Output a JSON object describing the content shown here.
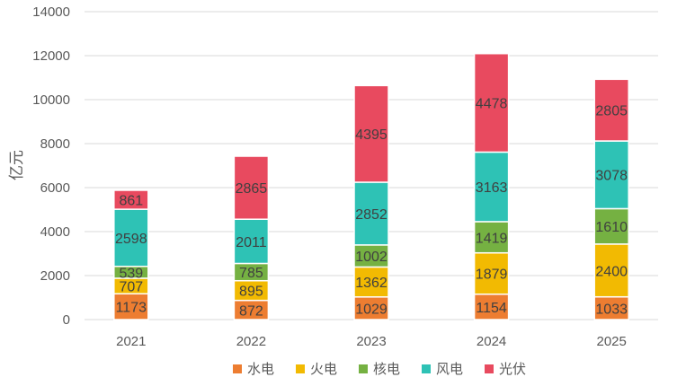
{
  "chart_data": {
    "type": "bar",
    "stacked": true,
    "title": "",
    "xlabel": "",
    "ylabel": "亿元",
    "ylim": [
      0,
      14000
    ],
    "yticks": [
      0,
      2000,
      4000,
      6000,
      8000,
      10000,
      12000,
      14000
    ],
    "grid": true,
    "legend_position": "bottom",
    "categories": [
      "2021",
      "2022",
      "2023",
      "2024",
      "2025"
    ],
    "series": [
      {
        "name": "水电",
        "color": "#ED7D31",
        "values": [
          1173,
          872,
          1029,
          1154,
          1033
        ]
      },
      {
        "name": "火电",
        "color": "#F2BA02",
        "values": [
          707,
          895,
          1362,
          1879,
          2400
        ]
      },
      {
        "name": "核电",
        "color": "#75B142",
        "values": [
          539,
          785,
          1002,
          1419,
          1610
        ]
      },
      {
        "name": "风电",
        "color": "#2EC2B5",
        "values": [
          2598,
          2011,
          2852,
          3163,
          3078
        ]
      },
      {
        "name": "光伏",
        "color": "#E84A5F",
        "values": [
          861,
          2865,
          4395,
          4478,
          2805
        ]
      }
    ]
  }
}
